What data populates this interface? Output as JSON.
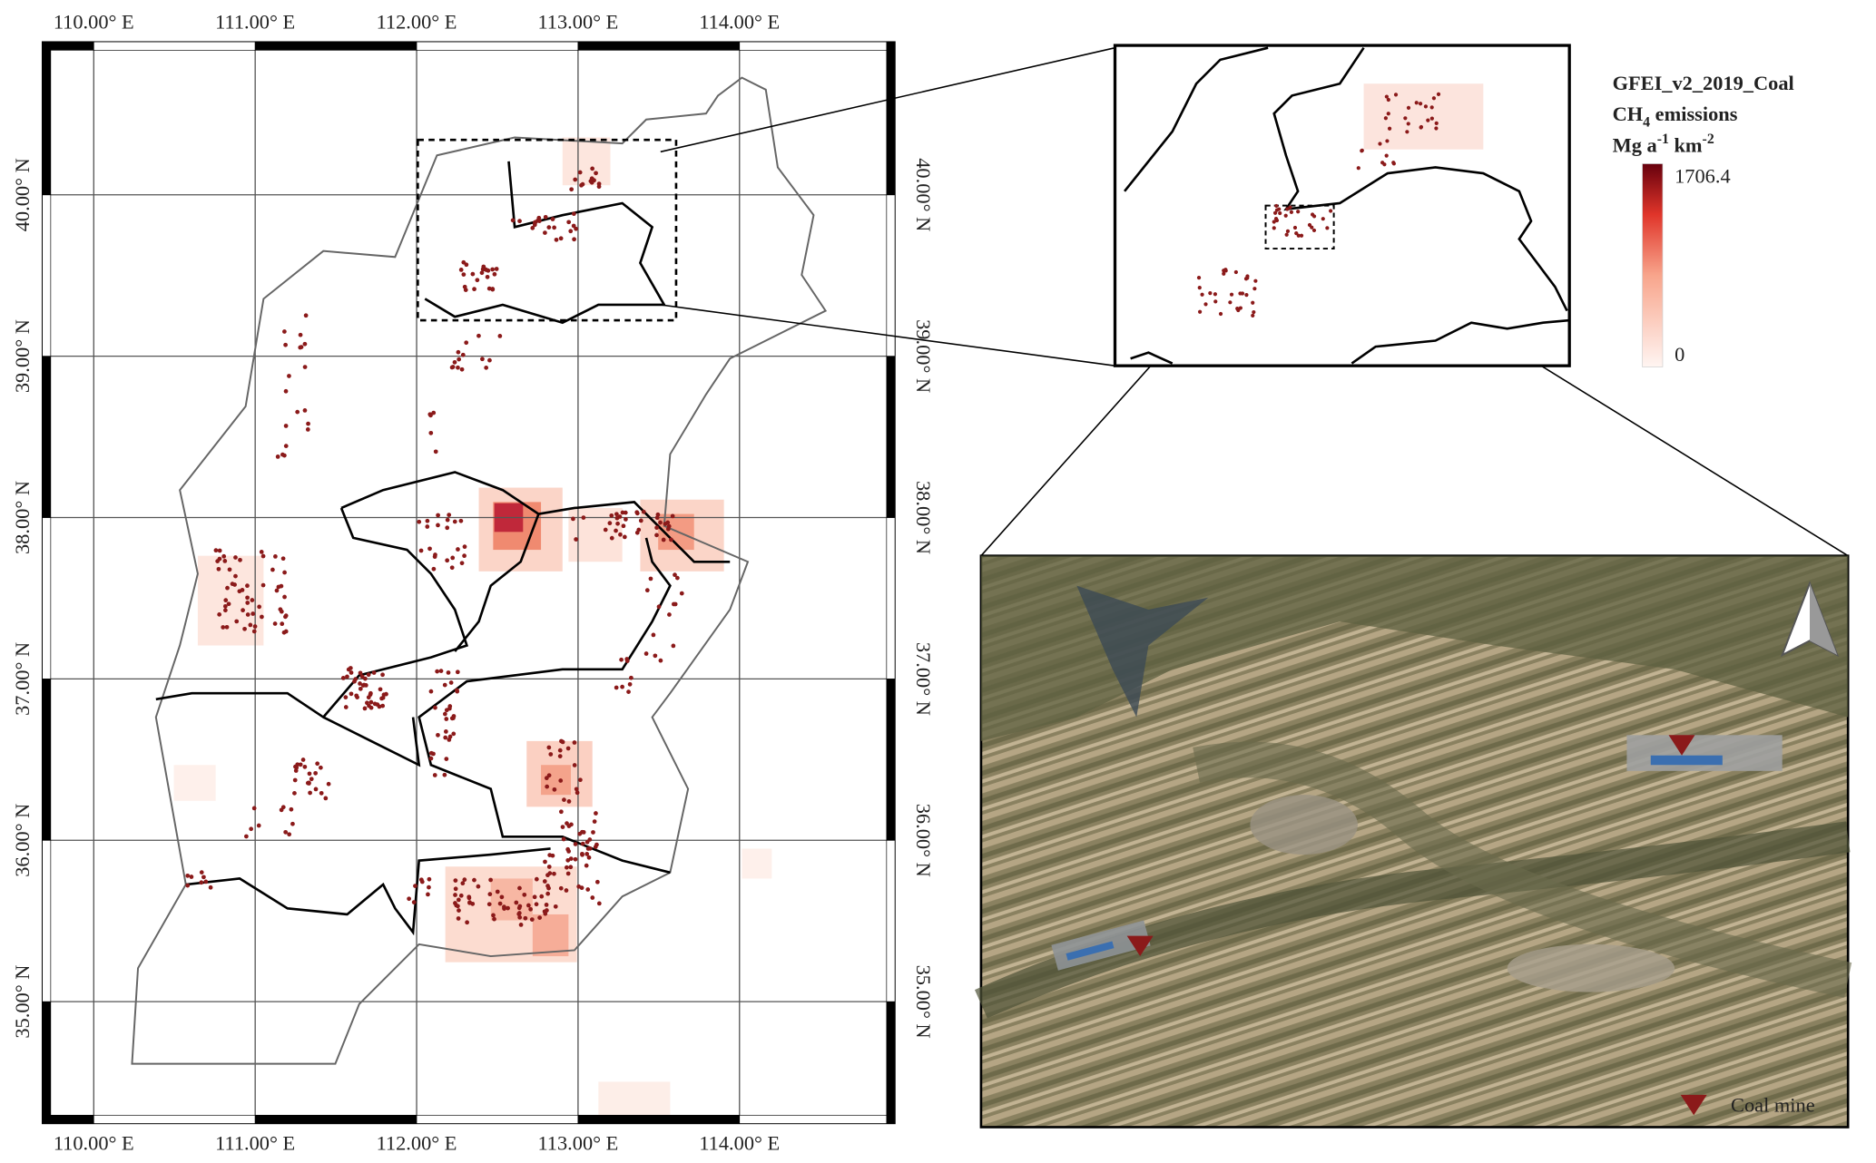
{
  "longitude_labels": [
    "110.00° E",
    "111.00° E",
    "112.00° E",
    "113.00° E",
    "114.00° E"
  ],
  "latitude_labels": [
    "35.00° N",
    "36.00° N",
    "37.00° N",
    "38.00° N",
    "39.00° N",
    "40.00° N"
  ],
  "legend": {
    "title": "GFEI_v2_2019_Coal",
    "quantity": "CH",
    "quantity_subscript": "4",
    "quantity_rest": " emissions",
    "unit_a": "Mg a",
    "unit_a_sup": "-1",
    "unit_km": " km",
    "unit_km_sup": "-2",
    "max": 1706.4,
    "min": 0
  },
  "inset_legend": "Coal mine"
}
